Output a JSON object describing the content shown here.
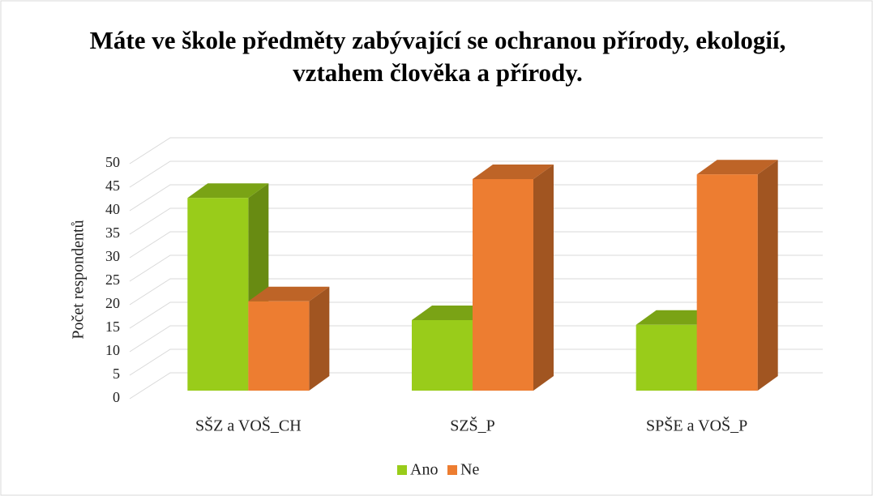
{
  "chart_data": {
    "type": "bar3d",
    "title": "Máte ve škole předměty zabývající se ochranou přírody, ekologií, vztahem člověka a přírody.",
    "y_label": "Počet respondentů",
    "categories": [
      "SŠZ a VOŠ_CH",
      "SZŠ_P",
      "SPŠE a VOŠ_P"
    ],
    "series": [
      {
        "name": "Ano",
        "color": "#99cc1a",
        "values": [
          41,
          15,
          14
        ]
      },
      {
        "name": "Ne",
        "color": "#ed7d31",
        "values": [
          19,
          45,
          46
        ]
      }
    ],
    "ylim": [
      0,
      50
    ],
    "yticks": [
      0,
      5,
      10,
      15,
      20,
      25,
      30,
      35,
      40,
      45,
      50
    ],
    "grid": true,
    "legend": "bottom"
  }
}
